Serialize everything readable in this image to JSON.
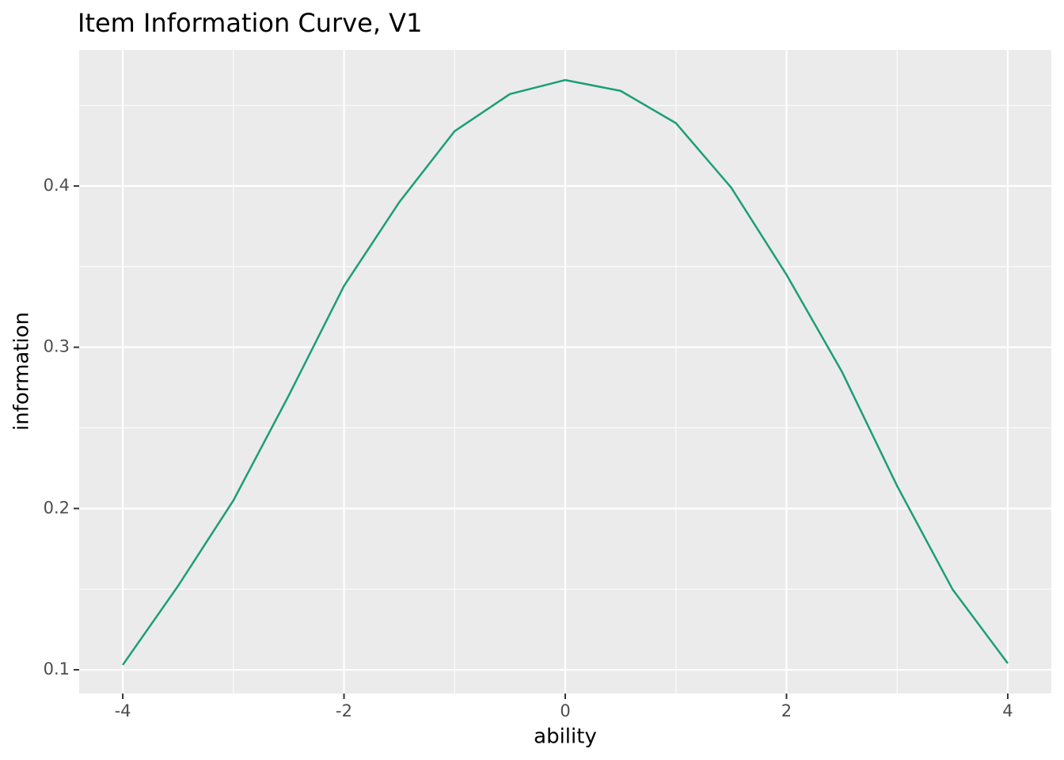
{
  "chart_data": {
    "type": "line",
    "title": "Item Information Curve, V1",
    "x_label": "ability",
    "y_label": "information",
    "x": [
      -4,
      -3.5,
      -3,
      -2.5,
      -2,
      -1.5,
      -1,
      -0.5,
      0,
      0.5,
      1,
      1.5,
      2,
      2.5,
      3,
      3.5,
      4
    ],
    "series": [
      {
        "color": "#1b9e77",
        "values": [
          0.103,
          0.152,
          0.205,
          0.27,
          0.338,
          0.39,
          0.434,
          0.457,
          0.4657,
          0.459,
          0.439,
          0.399,
          0.345,
          0.285,
          0.214,
          0.15,
          0.104
        ]
      }
    ],
    "xlim": [
      -4.394,
      4.394
    ],
    "ylim": [
      0.0853,
      0.4844
    ],
    "xticks": [
      -4,
      -2,
      0,
      2,
      4
    ],
    "yticks": [
      0.1,
      0.2,
      0.3,
      0.4
    ],
    "x_minor_breaks": [
      -3,
      -1,
      1,
      3
    ],
    "y_minor_breaks": [
      0.15,
      0.25,
      0.35,
      0.45
    ],
    "grid": true,
    "panel_color": "#ebebeb"
  }
}
